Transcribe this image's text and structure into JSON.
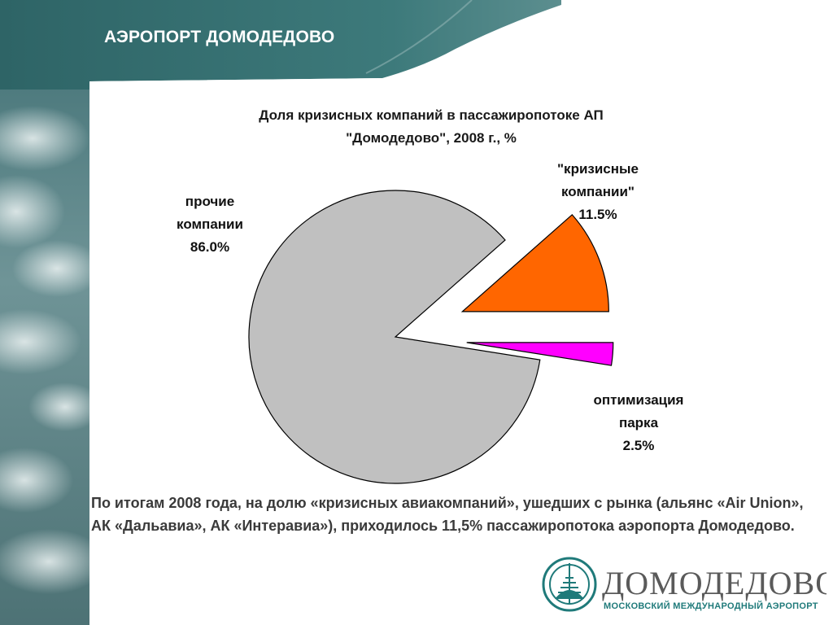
{
  "header": {
    "title": "АЭРОПОРТ ДОМОДЕДОВО"
  },
  "chart_data": {
    "type": "pie",
    "title_line1": "Доля кризисных компаний в пассажиропотоке АП",
    "title_line2": "\"Домодедово\", 2008 г., %",
    "slices": [
      {
        "label_line1": "прочие",
        "label_line2": "компании",
        "value": 86.0,
        "value_label": "86.0%",
        "color": "#c0c0c0"
      },
      {
        "label_line1": "\"кризисные",
        "label_line2": "компании\"",
        "value": 11.5,
        "value_label": "11.5%",
        "color": "#ff6600"
      },
      {
        "label_line1": "оптимизация",
        "label_line2": "парка",
        "value": 2.5,
        "value_label": "2.5%",
        "color": "#ff00ff"
      }
    ]
  },
  "summary": {
    "text": "По итогам 2008 года, на долю «кризисных авиакомпаний», ушедших с рынка (альянс «Air Union», АК «Дальавиа», АК «Интеравиа»), приходилось 11,5% пассажиропотока аэропорта Домодедово."
  },
  "logo": {
    "name": "ДОМОДЕДОВО",
    "tagline": "МОСКОВСКИЙ МЕЖДУНАРОДНЫЙ АЭРОПОРТ"
  }
}
